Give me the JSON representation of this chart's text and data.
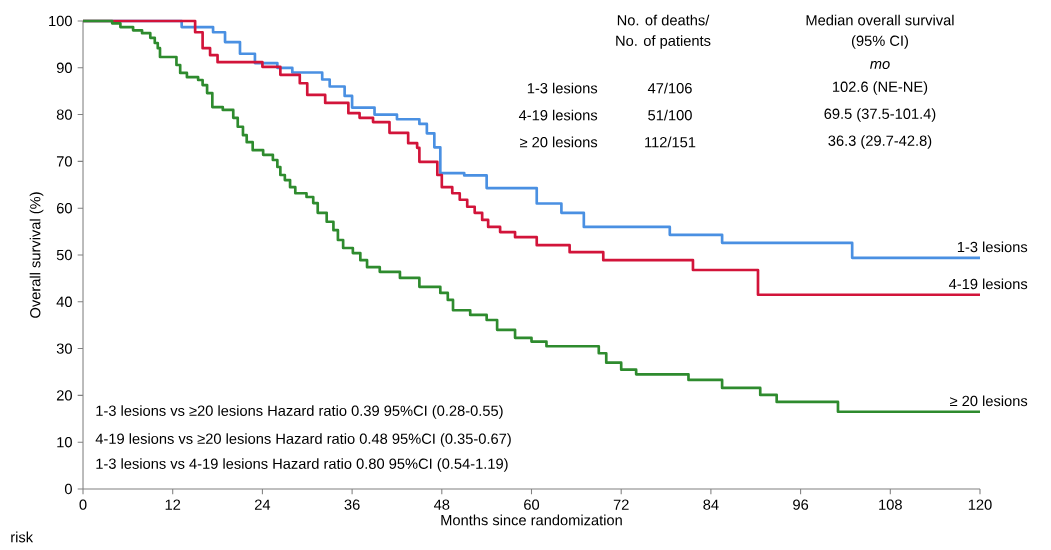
{
  "chart_data": {
    "type": "step",
    "xlabel": "Months since randomization",
    "ylabel": "Overall survival (%)",
    "xlim": [
      0,
      120
    ],
    "ylim": [
      0,
      100
    ],
    "xticks": [
      0,
      12,
      24,
      36,
      48,
      60,
      72,
      84,
      96,
      108,
      120
    ],
    "yticks": [
      0,
      10,
      20,
      30,
      40,
      50,
      60,
      70,
      80,
      90,
      100
    ],
    "grid": false,
    "legend": false,
    "series": [
      {
        "name": "1-3 lesions",
        "color": "#4a90e2",
        "x": [
          0,
          13.2,
          17.4,
          19,
          21,
          23,
          26,
          28,
          32,
          33,
          35,
          36,
          39,
          42,
          45,
          46,
          47,
          47.8,
          51,
          54,
          60.7,
          64,
          67,
          78.5,
          85.5,
          102.9,
          120
        ],
        "values": [
          100,
          98.7,
          97.6,
          95.5,
          93,
          91,
          90,
          89,
          87.5,
          86,
          84,
          81.5,
          80,
          79,
          78,
          76,
          73,
          67.5,
          67,
          64.3,
          61,
          59,
          56,
          54.3,
          52.6,
          49.4,
          49.4
        ]
      },
      {
        "name": "4-19 lesions",
        "color": "#d2143a",
        "x": [
          0,
          15,
          16,
          17,
          18,
          18.7,
          24,
          26.4,
          29,
          30,
          32.4,
          35.5,
          37,
          38.8,
          41,
          43.5,
          44.7,
          45,
          47.4,
          48,
          49.4,
          50.4,
          51.4,
          52.4,
          53.4,
          54.2,
          55.8,
          57.8,
          60.7,
          65.1,
          69.6,
          81.6,
          90.3,
          120
        ],
        "values": [
          100,
          97.6,
          94.2,
          92.7,
          91.2,
          91.2,
          90.2,
          88.5,
          86.7,
          84.2,
          82.5,
          80.3,
          79.3,
          78.4,
          76.1,
          73.9,
          72.9,
          69.9,
          67.1,
          64.5,
          63.2,
          61.8,
          60.3,
          59,
          57.5,
          56,
          54.9,
          53.8,
          52.1,
          50.6,
          48.9,
          46.8,
          41.5,
          41.5
        ]
      },
      {
        "name": "≥ 20 lesions",
        "color": "#2e8b2e",
        "x": [
          0,
          3.9,
          5,
          6.7,
          7.9,
          9,
          9.6,
          10,
          10.3,
          12.5,
          13,
          13.9,
          15.4,
          16,
          16.6,
          17.3,
          18.7,
          20.1,
          20.7,
          21.4,
          21.9,
          22.7,
          24.1,
          25.4,
          26,
          26.4,
          27,
          27.7,
          28.4,
          29.9,
          30.8,
          31.4,
          32.6,
          33.5,
          34.1,
          34.8,
          36.1,
          37.1,
          38,
          39.7,
          42.4,
          45,
          47.8,
          48.8,
          49.5,
          51.8,
          54,
          55.4,
          57.8,
          60,
          62,
          69,
          70,
          72,
          74,
          81,
          85.5,
          90.6,
          92.8,
          101,
          120
        ],
        "values": [
          100,
          99.5,
          98.7,
          98,
          97.4,
          96.4,
          95.3,
          94.2,
          92.3,
          90.6,
          88.9,
          88,
          87.4,
          86.3,
          84.6,
          81.6,
          81,
          79.3,
          77.4,
          75.6,
          74.1,
          72.4,
          71.4,
          70.3,
          68.8,
          67.1,
          66,
          64.5,
          63.2,
          62.4,
          61.1,
          59,
          57.1,
          55.3,
          53.2,
          51.5,
          50.4,
          48.9,
          47.4,
          46.4,
          45.1,
          43.2,
          41.9,
          40.4,
          38.2,
          37.2,
          36.1,
          34,
          32.3,
          31.5,
          30.5,
          29,
          27,
          25.5,
          24.5,
          23.3,
          21.6,
          20.1,
          18.6,
          16.5,
          16.5
        ]
      }
    ],
    "annotations": [
      "No. of deaths/",
      "No. of patients",
      "Median overall survival",
      "(95% CI)",
      "mo",
      "1-3 lesions",
      "47/106",
      "102.6 (NE-NE)",
      "4-19 lesions",
      "51/100",
      "69.5 (37.5-101.4)",
      "≥ 20 lesions",
      "112/151",
      "36.3 (29.7-42.8)",
      "1-3 lesions vs ≥20 lesions Hazard ratio 0.39 95%CI (0.28-0.55)",
      "4-19 lesions vs  ≥20 lesions Hazard ratio 0.48 95%CI (0.35-0.67)",
      "1-3 lesions vs 4-19 lesions Hazard ratio 0.80 95%CI (0.54-1.19)",
      "risk"
    ]
  }
}
